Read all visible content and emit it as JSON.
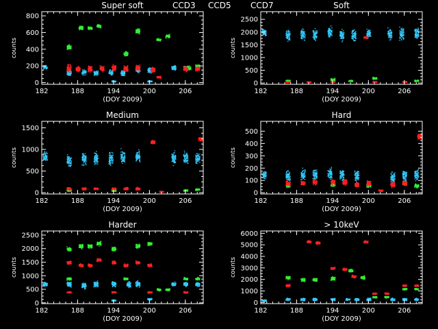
{
  "legend": [
    {
      "label": "CCD3",
      "color": "#33ccff"
    },
    {
      "label": "CCD5",
      "color": "#33ee33"
    },
    {
      "label": "CCD7",
      "color": "#ff2222"
    }
  ],
  "chart_data": [
    {
      "type": "scatter",
      "title": "Super soft",
      "xlabel": "(DOY 2009)",
      "ylabel": "counts",
      "xlim": [
        182,
        209
      ],
      "ylim": [
        -20,
        850
      ],
      "xticks": [
        182,
        188,
        194,
        200,
        206
      ],
      "yticks": [
        0,
        200,
        400,
        600,
        800
      ],
      "series": [
        {
          "name": "CCD3",
          "color": "#33ccff",
          "clusters": [
            [
              182.5,
              190,
              30
            ],
            [
              186.5,
              120,
              40
            ],
            [
              189,
              130,
              40
            ],
            [
              191,
              120,
              40
            ],
            [
              193.5,
              130,
              40
            ],
            [
              195.5,
              120,
              40
            ],
            [
              198,
              160,
              50
            ],
            [
              200,
              150,
              40
            ],
            [
              204,
              180,
              40
            ],
            [
              206,
              170,
              40
            ],
            [
              208,
              180,
              40
            ],
            [
              194,
              20,
              10
            ],
            [
              200,
              20,
              10
            ]
          ]
        },
        {
          "name": "CCD5",
          "color": "#33ee33",
          "clusters": [
            [
              186.5,
              430,
              40
            ],
            [
              188.5,
              660,
              30
            ],
            [
              190,
              660,
              30
            ],
            [
              191.5,
              680,
              30
            ],
            [
              196,
              350,
              40
            ],
            [
              198,
              620,
              40
            ],
            [
              201.5,
              520,
              20
            ],
            [
              203,
              560,
              30
            ],
            [
              206.5,
              180,
              30
            ],
            [
              208,
              200,
              30
            ]
          ]
        },
        {
          "name": "CCD7",
          "color": "#ff2222",
          "clusters": [
            [
              186.5,
              180,
              60
            ],
            [
              188,
              170,
              50
            ],
            [
              190,
              170,
              50
            ],
            [
              192,
              170,
              50
            ],
            [
              194,
              180,
              50
            ],
            [
              196,
              170,
              50
            ],
            [
              198,
              180,
              50
            ],
            [
              200.5,
              160,
              40
            ],
            [
              201.5,
              70,
              20
            ],
            [
              206,
              170,
              40
            ],
            [
              208,
              170,
              40
            ]
          ]
        }
      ]
    },
    {
      "type": "scatter",
      "title": "Soft",
      "xlabel": "(DOY 2009)",
      "ylabel": "counts",
      "xlim": [
        182,
        209
      ],
      "ylim": [
        -50,
        2800
      ],
      "xticks": [
        182,
        188,
        194,
        200,
        206
      ],
      "yticks": [
        0,
        500,
        1000,
        1500,
        2000,
        2500
      ],
      "series": [
        {
          "name": "CCD3",
          "color": "#33ccff",
          "clusters": [
            [
              182.5,
              2000,
              200
            ],
            [
              186.5,
              1900,
              300
            ],
            [
              189,
              1900,
              300
            ],
            [
              191,
              1900,
              300
            ],
            [
              193.5,
              2000,
              300
            ],
            [
              195.5,
              1900,
              300
            ],
            [
              197.5,
              1900,
              300
            ],
            [
              200,
              1950,
              200
            ],
            [
              203.5,
              1950,
              300
            ],
            [
              205.5,
              1950,
              300
            ],
            [
              208,
              1950,
              300
            ]
          ]
        },
        {
          "name": "CCD5",
          "color": "#33ee33",
          "clusters": [
            [
              186.5,
              100,
              50
            ],
            [
              194,
              150,
              60
            ],
            [
              197,
              100,
              40
            ],
            [
              201,
              200,
              60
            ],
            [
              208,
              100,
              40
            ]
          ]
        },
        {
          "name": "CCD7",
          "color": "#ff2222",
          "clusters": [
            [
              186.5,
              50,
              30
            ],
            [
              190,
              50,
              30
            ],
            [
              194,
              60,
              30
            ],
            [
              199.5,
              1800,
              60
            ],
            [
              201,
              60,
              30
            ],
            [
              206,
              60,
              30
            ]
          ]
        }
      ]
    },
    {
      "type": "scatter",
      "title": "Medium",
      "xlabel": "(DOY 2009)",
      "ylabel": "counts",
      "xlim": [
        182,
        209
      ],
      "ylim": [
        -30,
        1650
      ],
      "xticks": [
        182,
        188,
        194,
        200,
        206
      ],
      "yticks": [
        0,
        500,
        1000,
        1500
      ],
      "series": [
        {
          "name": "CCD3",
          "color": "#33ccff",
          "clusters": [
            [
              182.5,
              850,
              150
            ],
            [
              186.5,
              750,
              200
            ],
            [
              189,
              800,
              200
            ],
            [
              191,
              800,
              200
            ],
            [
              193.5,
              800,
              200
            ],
            [
              195.5,
              850,
              200
            ],
            [
              198,
              850,
              200
            ],
            [
              204,
              800,
              200
            ],
            [
              206,
              800,
              200
            ],
            [
              208,
              800,
              150
            ]
          ]
        },
        {
          "name": "CCD5",
          "color": "#33ee33",
          "clusters": [
            [
              186.5,
              60,
              30
            ],
            [
              194,
              60,
              30
            ],
            [
              206,
              60,
              30
            ],
            [
              208,
              80,
              30
            ]
          ]
        },
        {
          "name": "CCD7",
          "color": "#ff2222",
          "clusters": [
            [
              186.5,
              100,
              40
            ],
            [
              189,
              100,
              40
            ],
            [
              191,
              100,
              40
            ],
            [
              194,
              100,
              40
            ],
            [
              196,
              100,
              40
            ],
            [
              198,
              100,
              40
            ],
            [
              200.5,
              1180,
              60
            ],
            [
              202,
              30,
              20
            ],
            [
              208.5,
              1250,
              60
            ]
          ]
        }
      ]
    },
    {
      "type": "scatter",
      "title": "Hard",
      "xlabel": "(DOY 2009)",
      "ylabel": "counts",
      "xlim": [
        182,
        209
      ],
      "ylim": [
        -10,
        580
      ],
      "xticks": [
        182,
        188,
        194,
        200,
        206
      ],
      "yticks": [
        0,
        100,
        200,
        300,
        400,
        500
      ],
      "series": [
        {
          "name": "CCD3",
          "color": "#33ccff",
          "clusters": [
            [
              182.5,
              150,
              40
            ],
            [
              186.5,
              140,
              60
            ],
            [
              189,
              150,
              60
            ],
            [
              191,
              150,
              60
            ],
            [
              193.5,
              160,
              60
            ],
            [
              195.5,
              150,
              60
            ],
            [
              198,
              140,
              60
            ],
            [
              204,
              130,
              60
            ],
            [
              206,
              140,
              60
            ],
            [
              208,
              150,
              60
            ]
          ]
        },
        {
          "name": "CCD5",
          "color": "#33ee33",
          "clusters": [
            [
              186.5,
              60,
              20
            ],
            [
              194,
              70,
              20
            ],
            [
              200,
              60,
              20
            ],
            [
              206,
              80,
              20
            ],
            [
              208,
              60,
              20
            ]
          ]
        },
        {
          "name": "CCD7",
          "color": "#ff2222",
          "clusters": [
            [
              186.5,
              80,
              30
            ],
            [
              189,
              80,
              30
            ],
            [
              191,
              90,
              30
            ],
            [
              194,
              90,
              30
            ],
            [
              196,
              90,
              30
            ],
            [
              198,
              70,
              30
            ],
            [
              200,
              80,
              30
            ],
            [
              202,
              20,
              10
            ],
            [
              204,
              70,
              30
            ],
            [
              206,
              80,
              30
            ],
            [
              208.5,
              460,
              30
            ]
          ]
        }
      ]
    },
    {
      "type": "scatter",
      "title": "Harder",
      "xlabel": "(DOY 2009)",
      "ylabel": "counts",
      "xlim": [
        182,
        209
      ],
      "ylim": [
        -30,
        2650
      ],
      "xticks": [
        182,
        188,
        194,
        200,
        206
      ],
      "yticks": [
        0,
        500,
        1000,
        1500,
        2000,
        2500
      ],
      "series": [
        {
          "name": "CCD3",
          "color": "#33ccff",
          "clusters": [
            [
              182.5,
              700,
              100
            ],
            [
              186.5,
              700,
              150
            ],
            [
              189,
              650,
              150
            ],
            [
              191,
              700,
              150
            ],
            [
              194,
              700,
              150
            ],
            [
              196.5,
              700,
              150
            ],
            [
              198,
              700,
              150
            ],
            [
              200,
              150,
              50
            ],
            [
              204,
              700,
              100
            ],
            [
              206,
              700,
              100
            ],
            [
              208,
              700,
              100
            ],
            [
              194,
              100,
              30
            ]
          ]
        },
        {
          "name": "CCD5",
          "color": "#33ee33",
          "clusters": [
            [
              186.5,
              2000,
              100
            ],
            [
              186.5,
              900,
              60
            ],
            [
              188.5,
              2100,
              100
            ],
            [
              190,
              2100,
              100
            ],
            [
              191.5,
              2200,
              100
            ],
            [
              194,
              2000,
              100
            ],
            [
              196,
              900,
              60
            ],
            [
              198,
              2100,
              100
            ],
            [
              200,
              2200,
              100
            ],
            [
              201.5,
              500,
              60
            ],
            [
              203,
              500,
              60
            ],
            [
              206,
              900,
              60
            ],
            [
              208,
              900,
              60
            ]
          ]
        },
        {
          "name": "CCD7",
          "color": "#ff2222",
          "clusters": [
            [
              186.5,
              1500,
              80
            ],
            [
              188.5,
              1400,
              80
            ],
            [
              190,
              1400,
              80
            ],
            [
              191.5,
              1600,
              80
            ],
            [
              194,
              1500,
              80
            ],
            [
              196,
              1400,
              80
            ],
            [
              198,
              1500,
              80
            ],
            [
              200,
              1400,
              80
            ],
            [
              186.5,
              400,
              40
            ],
            [
              194,
              400,
              40
            ],
            [
              200,
              400,
              40
            ],
            [
              206,
              400,
              40
            ]
          ]
        }
      ]
    },
    {
      "type": "scatter",
      "title": "> 10keV",
      "xlabel": "(DOY 2009)",
      "ylabel": "counts",
      "xlim": [
        182,
        209
      ],
      "ylim": [
        -100,
        6200
      ],
      "xticks": [
        182,
        188,
        194,
        200,
        206
      ],
      "yticks": [
        0,
        1000,
        2000,
        3000,
        4000,
        5000,
        6000
      ],
      "series": [
        {
          "name": "CCD3",
          "color": "#33ccff",
          "clusters": [
            [
              182.5,
              200,
              100
            ],
            [
              186.5,
              300,
              150
            ],
            [
              189,
              300,
              150
            ],
            [
              191,
              300,
              150
            ],
            [
              194,
              300,
              150
            ],
            [
              196.5,
              300,
              150
            ],
            [
              198,
              300,
              150
            ],
            [
              200,
              300,
              150
            ],
            [
              204,
              300,
              150
            ],
            [
              206,
              300,
              150
            ],
            [
              208,
              300,
              150
            ]
          ]
        },
        {
          "name": "CCD5",
          "color": "#33ee33",
          "clusters": [
            [
              186.5,
              2200,
              200
            ],
            [
              189,
              2000,
              200
            ],
            [
              191,
              2000,
              200
            ],
            [
              194,
              2100,
              200
            ],
            [
              197,
              2800,
              200
            ],
            [
              199,
              2200,
              200
            ],
            [
              201,
              500,
              100
            ],
            [
              203,
              500,
              100
            ],
            [
              206,
              1200,
              100
            ],
            [
              208,
              1200,
              100
            ]
          ]
        },
        {
          "name": "CCD7",
          "color": "#ff2222",
          "clusters": [
            [
              186.5,
              1500,
              150
            ],
            [
              190,
              5300,
              150
            ],
            [
              191.5,
              5200,
              150
            ],
            [
              194,
              3000,
              150
            ],
            [
              196,
              2900,
              150
            ],
            [
              197.5,
              2300,
              150
            ],
            [
              199.5,
              5300,
              150
            ],
            [
              201,
              800,
              100
            ],
            [
              203,
              800,
              100
            ],
            [
              206,
              1500,
              100
            ],
            [
              208,
              1500,
              100
            ]
          ]
        }
      ]
    }
  ]
}
